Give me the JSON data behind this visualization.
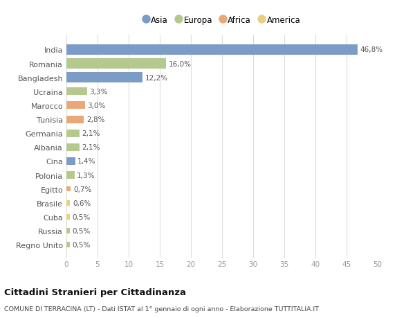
{
  "categories": [
    "India",
    "Romania",
    "Bangladesh",
    "Ucraina",
    "Marocco",
    "Tunisia",
    "Germania",
    "Albania",
    "Cina",
    "Polonia",
    "Egitto",
    "Brasile",
    "Cuba",
    "Russia",
    "Regno Unito"
  ],
  "values": [
    46.8,
    16.0,
    12.2,
    3.3,
    3.0,
    2.8,
    2.1,
    2.1,
    1.4,
    1.3,
    0.7,
    0.6,
    0.5,
    0.5,
    0.5
  ],
  "labels": [
    "46,8%",
    "16,0%",
    "12,2%",
    "3,3%",
    "3,0%",
    "2,8%",
    "2,1%",
    "2,1%",
    "1,4%",
    "1,3%",
    "0,7%",
    "0,6%",
    "0,5%",
    "0,5%",
    "0,5%"
  ],
  "continents": [
    "Asia",
    "Europa",
    "Asia",
    "Europa",
    "Africa",
    "Africa",
    "Europa",
    "Europa",
    "Asia",
    "Europa",
    "Africa",
    "America",
    "America",
    "Europa",
    "Europa"
  ],
  "continent_colors": {
    "Asia": "#7b9cc7",
    "Europa": "#b5c98e",
    "Africa": "#e8a87a",
    "America": "#e8d080"
  },
  "legend_order": [
    "Asia",
    "Europa",
    "Africa",
    "America"
  ],
  "title": "Cittadini Stranieri per Cittadinanza",
  "subtitle": "COMUNE DI TERRACINA (LT) - Dati ISTAT al 1° gennaio di ogni anno - Elaborazione TUTTITALIA.IT",
  "xlim": [
    0,
    50
  ],
  "xticks": [
    0,
    5,
    10,
    15,
    20,
    25,
    30,
    35,
    40,
    45,
    50
  ],
  "background_color": "#ffffff",
  "grid_color": "#dddddd",
  "bar_heights": [
    0.72,
    0.72,
    0.72,
    0.55,
    0.55,
    0.55,
    0.55,
    0.55,
    0.55,
    0.55,
    0.38,
    0.38,
    0.38,
    0.38,
    0.38
  ]
}
